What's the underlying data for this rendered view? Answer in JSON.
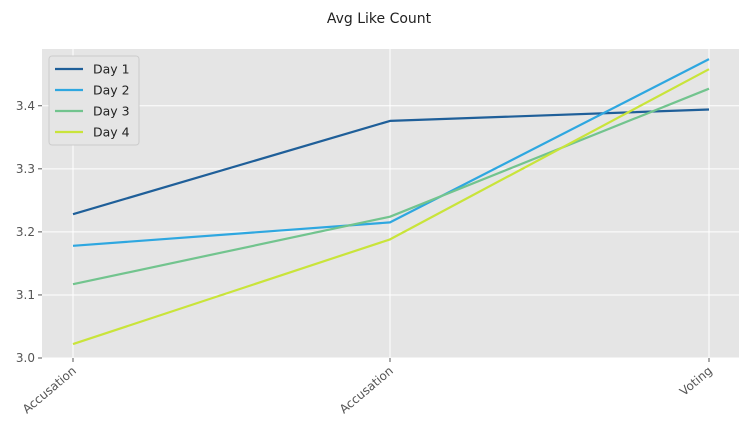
{
  "chart_data": {
    "type": "line",
    "title": "Avg Like Count",
    "xlabel": "",
    "ylabel": "",
    "categories": [
      "Accusation",
      "Accusation",
      "Voting"
    ],
    "ylim": [
      3.0,
      3.49
    ],
    "yticks": [
      "3.0",
      "3.1",
      "3.2",
      "3.3",
      "3.4"
    ],
    "grid": true,
    "legend_position": "top-left",
    "series": [
      {
        "name": "Day 1",
        "color": "#1f5f99",
        "values": [
          3.228,
          3.376,
          3.394
        ]
      },
      {
        "name": "Day 2",
        "color": "#2ea7e0",
        "values": [
          3.178,
          3.215,
          3.474
        ]
      },
      {
        "name": "Day 3",
        "color": "#72c48e",
        "values": [
          3.117,
          3.224,
          3.427
        ]
      },
      {
        "name": "Day 4",
        "color": "#c9e43a",
        "values": [
          3.022,
          3.188,
          3.458
        ]
      }
    ]
  }
}
